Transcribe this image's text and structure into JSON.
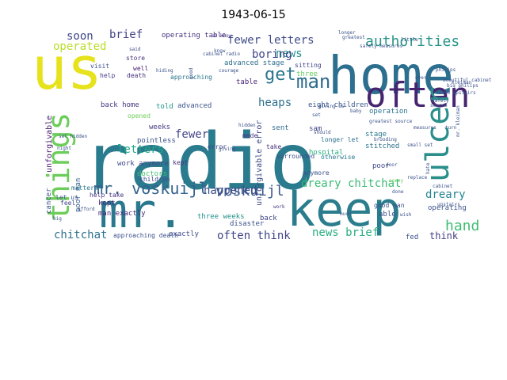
{
  "title": "1943-06-15",
  "cloud": {
    "type": "wordcloud",
    "words": [
      {
        "text": "radio",
        "color": "#2a7b8e"
      },
      {
        "text": "us",
        "color": "#e6e21c"
      },
      {
        "text": "home",
        "color": "#2c6f8e"
      },
      {
        "text": "keep",
        "color": "#2b7d8d"
      },
      {
        "text": "mr.",
        "color": "#2a788e"
      },
      {
        "text": "often",
        "color": "#46246f"
      },
      {
        "text": "things",
        "color": "#6ccd5a"
      },
      {
        "text": "ulcer",
        "color": "#2a8f8b"
      },
      {
        "text": "mr. voskuijl",
        "color": "#33628d"
      },
      {
        "text": "authorities",
        "color": "#2a9589"
      },
      {
        "text": "man",
        "color": "#2f6c8e"
      },
      {
        "text": "get",
        "color": "#2b748e"
      },
      {
        "text": "voskuijl",
        "color": "#38588c"
      },
      {
        "text": "dreary chitchat",
        "color": "#3bbc75"
      },
      {
        "text": "fewer letters",
        "color": "#3e4a89"
      },
      {
        "text": "soon",
        "color": "#3f4788"
      },
      {
        "text": "brief",
        "color": "#414287"
      },
      {
        "text": "operated",
        "color": "#b8de29"
      },
      {
        "text": "hand",
        "color": "#3fbc73"
      },
      {
        "text": "news",
        "color": "#21908d"
      },
      {
        "text": "boring",
        "color": "#404588"
      },
      {
        "text": "heaps",
        "color": "#2d708e"
      },
      {
        "text": "fewer",
        "color": "#414487"
      },
      {
        "text": "letters",
        "color": "#22a785"
      },
      {
        "text": "happened",
        "color": "#3c4f8a"
      },
      {
        "text": "dreary",
        "color": "#25848e"
      },
      {
        "text": "chitchat",
        "color": "#2d718e"
      },
      {
        "text": "often think",
        "color": "#404588"
      },
      {
        "text": "news brief",
        "color": "#28ae80"
      },
      {
        "text": "think",
        "color": "#433e85"
      },
      {
        "text": "unforgivable",
        "color": "#481b6d"
      },
      {
        "text": "unforgivable error",
        "color": "#3e4989"
      },
      {
        "text": "cancer",
        "color": "#3b528b"
      },
      {
        "text": "poor man",
        "color": "#355f8d"
      },
      {
        "text": "operating table",
        "color": "#46327e"
      },
      {
        "text": "advanced stage",
        "color": "#2e6e8e"
      },
      {
        "text": "table",
        "color": "#482576"
      },
      {
        "text": "three",
        "color": "#67cc5c"
      },
      {
        "text": "back home",
        "color": "#453781"
      },
      {
        "text": "told",
        "color": "#1f968b"
      },
      {
        "text": "advanced",
        "color": "#3a538b"
      },
      {
        "text": "sent",
        "color": "#31688e"
      },
      {
        "text": "sam",
        "color": "#404688"
      },
      {
        "text": "stage",
        "color": "#2a788e"
      },
      {
        "text": "hospital",
        "color": "#29af7f"
      },
      {
        "text": "stitched",
        "color": "#2c728e"
      },
      {
        "text": "poor",
        "color": "#3f4889"
      },
      {
        "text": "operation",
        "color": "#2c718e"
      },
      {
        "text": "eight children",
        "color": "#39568c"
      },
      {
        "text": "weeks",
        "color": "#443a83"
      },
      {
        "text": "pointless",
        "color": "#3b528b"
      },
      {
        "text": "work anymore",
        "color": "#3f4788"
      },
      {
        "text": "doctors",
        "color": "#44bf70"
      },
      {
        "text": "kept",
        "color": "#472c7a"
      },
      {
        "text": "man exactly",
        "color": "#482878"
      },
      {
        "text": "three weeks",
        "color": "#21918c"
      },
      {
        "text": "back",
        "color": "#414487"
      },
      {
        "text": "exactly",
        "color": "#3e4a89"
      },
      {
        "text": "disaster",
        "color": "#3b528b"
      },
      {
        "text": "operating",
        "color": "#3b528b"
      },
      {
        "text": "fed",
        "color": "#3b528b"
      },
      {
        "text": "able",
        "color": "#3b528b"
      },
      {
        "text": "store",
        "color": "#46337e"
      },
      {
        "text": "well",
        "color": "#481f70"
      },
      {
        "text": "death",
        "color": "#46307e"
      },
      {
        "text": "help",
        "color": "#433d84"
      },
      {
        "text": "visit",
        "color": "#3b518b"
      },
      {
        "text": "matters",
        "color": "#2a768e"
      },
      {
        "text": "feel",
        "color": "#3f4788"
      },
      {
        "text": "kept",
        "color": "#46327e"
      },
      {
        "text": "children",
        "color": "#3e4989"
      },
      {
        "text": "help take",
        "color": "#46307e"
      },
      {
        "text": "approaching death",
        "color": "#3b528b"
      },
      {
        "text": "let us",
        "color": "#3a548c"
      },
      {
        "text": "made",
        "color": "#46327e"
      },
      {
        "text": "error",
        "color": "#3e4989"
      },
      {
        "text": "surrounded",
        "color": "#3b528b"
      },
      {
        "text": "good man",
        "color": "#3b528b"
      },
      {
        "text": "longer let",
        "color": "#2d708e"
      },
      {
        "text": "otherwise",
        "color": "#2a788e"
      },
      {
        "text": "anymore",
        "color": "#3b528b"
      },
      {
        "text": "take",
        "color": "#46327e"
      },
      {
        "text": "sitting",
        "color": "#3f4788"
      },
      {
        "text": "approaching",
        "color": "#2a768e"
      },
      {
        "text": "opened",
        "color": "#6ece58"
      },
      {
        "text": "said",
        "color": "#3e4a89"
      },
      {
        "text": "us know",
        "color": "#46307e"
      },
      {
        "text": "know",
        "color": "#3b528b"
      },
      {
        "text": "work",
        "color": "#46327e"
      },
      {
        "text": "good",
        "color": "#3b528b"
      },
      {
        "text": "sorry",
        "color": "#6ece58"
      },
      {
        "text": "brooding",
        "color": "#3b528b"
      },
      {
        "text": "hate",
        "color": "#3b528b"
      },
      {
        "text": "greatest source",
        "color": "#3b528b"
      },
      {
        "text": "safety measures",
        "color": "#3b528b"
      },
      {
        "text": "beautiful cabinet",
        "color": "#3b528b"
      },
      {
        "text": "big philips",
        "color": "#3b528b"
      },
      {
        "text": "cabinet radio",
        "color": "#3b528b"
      },
      {
        "text": "philips",
        "color": "#3b528b"
      },
      {
        "text": "longer",
        "color": "#3b528b"
      },
      {
        "text": "greatest",
        "color": "#3b528b"
      },
      {
        "text": "source",
        "color": "#3b528b"
      },
      {
        "text": "safety",
        "color": "#3b528b"
      },
      {
        "text": "measures",
        "color": "#3b528b"
      },
      {
        "text": "small set",
        "color": "#3b528b"
      },
      {
        "text": "set",
        "color": "#3b528b"
      },
      {
        "text": "giving us",
        "color": "#3b528b"
      },
      {
        "text": "hidden",
        "color": "#3b528b"
      },
      {
        "text": "cabinet",
        "color": "#3b528b"
      },
      {
        "text": "mr. kleiman",
        "color": "#3b528b"
      },
      {
        "text": "kleiman",
        "color": "#3b528b"
      },
      {
        "text": "radio upstairs",
        "color": "#3b528b"
      },
      {
        "text": "upstairs",
        "color": "#3b528b"
      },
      {
        "text": "replace",
        "color": "#3b528b"
      },
      {
        "text": "turn",
        "color": "#3b528b"
      },
      {
        "text": "much",
        "color": "#3b528b"
      },
      {
        "text": "done",
        "color": "#3b528b"
      },
      {
        "text": "giving",
        "color": "#3b528b"
      },
      {
        "text": "afford",
        "color": "#3b528b"
      },
      {
        "text": "hiding",
        "color": "#3b528b"
      },
      {
        "text": "courage",
        "color": "#3b528b"
      },
      {
        "text": "night",
        "color": "#3b528b"
      },
      {
        "text": "baby",
        "color": "#3b528b"
      },
      {
        "text": "should",
        "color": "#3b528b"
      },
      {
        "text": "set hidden",
        "color": "#3b528b"
      },
      {
        "text": "big",
        "color": "#3b528b"
      },
      {
        "text": "ever",
        "color": "#3b528b"
      },
      {
        "text": "wish",
        "color": "#3b528b"
      },
      {
        "text": "little",
        "color": "#3b528b"
      },
      {
        "text": "door",
        "color": "#3b528b"
      }
    ]
  }
}
